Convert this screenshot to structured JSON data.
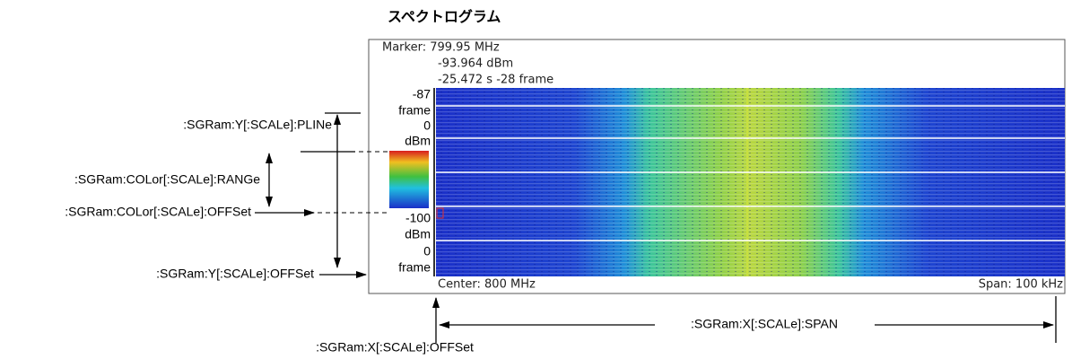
{
  "title": "スペクトログラム",
  "display": {
    "marker": [
      "Marker: 799.95 MHz",
      "-93.964 dBm",
      "-25.472 s  -28 frame"
    ],
    "left_scale": {
      "top_value": "-87",
      "top_unit": "frame",
      "top_zero": "0",
      "color_top_unit": "dBm",
      "color_bottom_value": "-100",
      "color_bottom_unit": "dBm",
      "bottom_zero": "0",
      "bottom_unit": "frame"
    },
    "center": "Center: 800 MHz",
    "span": "Span: 100 kHz"
  },
  "annotations": {
    "y_pline": ":SGRam:Y[:SCALe]:PLINe",
    "color_range": ":SGRam:COLor[:SCALe]:RANGe",
    "color_offset": ":SGRam:COLor[:SCALe]:OFFSet",
    "y_offset": ":SGRam:Y[:SCALe]:OFFSet",
    "x_span": ":SGRam:X[:SCALe]:SPAN",
    "x_offset": ":SGRam:X[:SCALe]:OFFSet"
  }
}
